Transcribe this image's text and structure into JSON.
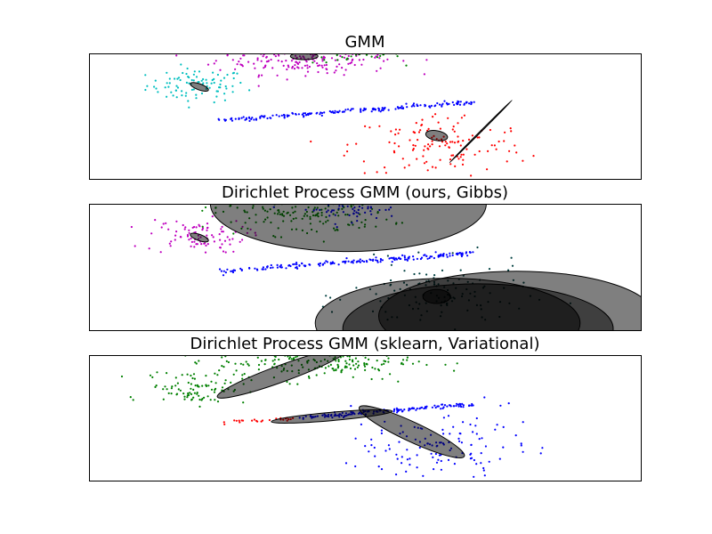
{
  "chart_data": [
    {
      "type": "scatter",
      "title": "GMM",
      "xlim": [
        -10,
        10
      ],
      "ylim": [
        -3,
        6
      ],
      "point_clusters": [
        {
          "color": "#00bfbf",
          "center": [
            -6.1,
            3.7
          ],
          "spread": [
            0.9,
            0.6
          ],
          "count": 90
        },
        {
          "color": "#bf00bf",
          "center": [
            -2.2,
            5.7
          ],
          "spread": [
            1.6,
            0.6
          ],
          "count": 220
        },
        {
          "color": "#008000",
          "center": [
            -0.3,
            5.9
          ],
          "spread": [
            0.8,
            0.3
          ],
          "count": 40
        },
        {
          "color": "#0000ff",
          "line": [
            [
              -5.2,
              1.2
            ],
            [
              3.9,
              2.5
            ]
          ],
          "noise": 0.08,
          "count": 180
        },
        {
          "color": "#ff0000",
          "center": [
            2.7,
            -0.6
          ],
          "spread": [
            1.6,
            1.2
          ],
          "count": 130
        }
      ],
      "components": [
        {
          "center": [
            -6.0,
            3.6
          ],
          "axes": [
            0.35,
            0.22
          ],
          "angle": 20
        },
        {
          "center": [
            -2.2,
            5.8
          ],
          "axes": [
            0.5,
            0.25
          ],
          "angle": 0
        },
        {
          "center": [
            2.6,
            0.1
          ],
          "axes": [
            0.4,
            0.35
          ],
          "angle": 10
        },
        {
          "center": [
            4.2,
            0.4
          ],
          "axes": [
            1.6,
            0.04
          ],
          "angle": -45
        }
      ]
    },
    {
      "type": "scatter",
      "title": "Dirichlet Process GMM (ours, Gibbs)",
      "xlim": [
        -10,
        10
      ],
      "ylim": [
        -3,
        6
      ],
      "point_clusters": [
        {
          "color": "#bf00bf",
          "center": [
            -6.1,
            3.7
          ],
          "spread": [
            0.9,
            0.6
          ],
          "count": 90
        },
        {
          "color": "#008000",
          "center": [
            -2.3,
            5.4
          ],
          "spread": [
            1.6,
            0.8
          ],
          "count": 180
        },
        {
          "color": "#0000ff",
          "center": [
            -0.6,
            5.6
          ],
          "spread": [
            0.9,
            0.4
          ],
          "count": 60
        },
        {
          "color": "#0000ff",
          "line": [
            [
              -5.2,
              1.2
            ],
            [
              3.9,
              2.5
            ]
          ],
          "noise": 0.08,
          "count": 180
        },
        {
          "color": "#004040",
          "center": [
            2.7,
            -0.6
          ],
          "spread": [
            1.6,
            1.2
          ],
          "count": 130
        }
      ],
      "components": [
        {
          "center": [
            -6.0,
            3.6
          ],
          "axes": [
            0.35,
            0.22
          ],
          "angle": 20
        },
        {
          "center": [
            -0.6,
            6.0
          ],
          "axes": [
            5.0,
            3.4
          ],
          "angle": 0
        },
        {
          "center": [
            2.6,
            -0.6
          ],
          "axes": [
            0.5,
            0.5
          ],
          "angle": 0
        },
        {
          "center": [
            3.0,
            -2.5
          ],
          "axes": [
            4.8,
            3.2
          ],
          "angle": 0
        },
        {
          "center": [
            5.5,
            -2.0
          ],
          "axes": [
            5.0,
            3.2
          ],
          "angle": 0
        },
        {
          "center": [
            4.1,
            -2.9
          ],
          "axes": [
            4.9,
            3.2
          ],
          "angle": 0
        }
      ]
    },
    {
      "type": "scatter",
      "title": "Dirichlet Process GMM (sklearn, Variational)",
      "xlim": [
        -10,
        10
      ],
      "ylim": [
        -3,
        6
      ],
      "point_clusters": [
        {
          "color": "#008000",
          "center": [
            -6.1,
            3.7
          ],
          "spread": [
            0.9,
            0.6
          ],
          "count": 90
        },
        {
          "color": "#008000",
          "center": [
            -1.8,
            5.6
          ],
          "spread": [
            1.8,
            0.7
          ],
          "count": 240
        },
        {
          "color": "#ff0000",
          "line": [
            [
              -5.2,
              1.2
            ],
            [
              -2.3,
              1.5
            ]
          ],
          "noise": 0.08,
          "count": 25
        },
        {
          "color": "#0000ff",
          "line": [
            [
              -2.3,
              1.5
            ],
            [
              3.9,
              2.5
            ]
          ],
          "noise": 0.08,
          "count": 150
        },
        {
          "color": "#0000ff",
          "center": [
            2.7,
            -0.6
          ],
          "spread": [
            1.6,
            1.2
          ],
          "count": 130
        }
      ],
      "components": [
        {
          "center": [
            -3.0,
            4.7
          ],
          "axes": [
            2.5,
            0.6
          ],
          "angle": -20
        },
        {
          "center": [
            -1.2,
            1.6
          ],
          "axes": [
            2.2,
            0.3
          ],
          "angle": -5
        },
        {
          "center": [
            1.7,
            0.5
          ],
          "axes": [
            2.1,
            0.7
          ],
          "angle": 25
        }
      ]
    }
  ]
}
